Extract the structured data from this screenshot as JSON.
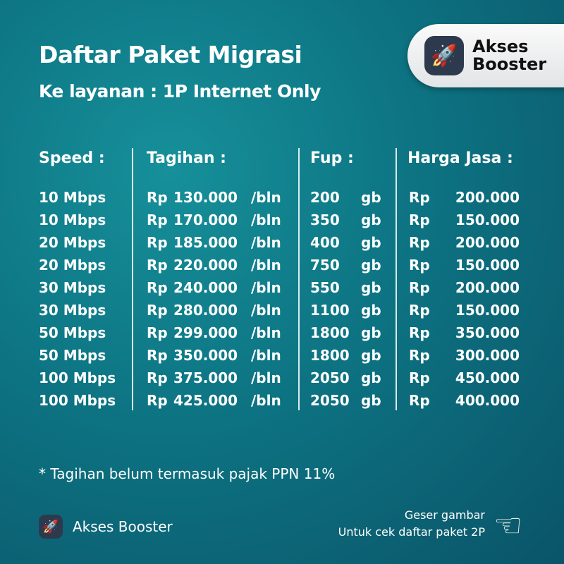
{
  "title": "Daftar Paket Migrasi",
  "subtitle": "Ke layanan : 1P Internet Only",
  "brand": {
    "name_line1": "Akses",
    "name_line2": "Booster",
    "name": "Akses Booster",
    "icon": "rocket-icon"
  },
  "table": {
    "headers": [
      "Speed :",
      "Tagihan :",
      "Fup :",
      "Harga Jasa :"
    ],
    "rows": [
      {
        "speed": "10 Mbps",
        "currency": "Rp",
        "bill": "130.000",
        "period": "/bln",
        "fup": "200",
        "unit": "gb",
        "fee_currency": "Rp",
        "fee": "200.000"
      },
      {
        "speed": "10 Mbps",
        "currency": "Rp",
        "bill": "170.000",
        "period": "/bln",
        "fup": "350",
        "unit": "gb",
        "fee_currency": "Rp",
        "fee": "150.000"
      },
      {
        "speed": "20 Mbps",
        "currency": "Rp",
        "bill": "185.000",
        "period": "/bln",
        "fup": "400",
        "unit": "gb",
        "fee_currency": "Rp",
        "fee": "200.000"
      },
      {
        "speed": "20 Mbps",
        "currency": "Rp",
        "bill": "220.000",
        "period": "/bln",
        "fup": "750",
        "unit": "gb",
        "fee_currency": "Rp",
        "fee": "150.000"
      },
      {
        "speed": "30 Mbps",
        "currency": "Rp",
        "bill": "240.000",
        "period": "/bln",
        "fup": "550",
        "unit": "gb",
        "fee_currency": "Rp",
        "fee": "200.000"
      },
      {
        "speed": "30 Mbps",
        "currency": "Rp",
        "bill": "280.000",
        "period": "/bln",
        "fup": "1100",
        "unit": "gb",
        "fee_currency": "Rp",
        "fee": "150.000"
      },
      {
        "speed": "50 Mbps",
        "currency": "Rp",
        "bill": "299.000",
        "period": "/bln",
        "fup": "1800",
        "unit": "gb",
        "fee_currency": "Rp",
        "fee": "350.000"
      },
      {
        "speed": "50 Mbps",
        "currency": "Rp",
        "bill": "350.000",
        "period": "/bln",
        "fup": "1800",
        "unit": "gb",
        "fee_currency": "Rp",
        "fee": "300.000"
      },
      {
        "speed": "100 Mbps",
        "currency": "Rp",
        "bill": "375.000",
        "period": "/bln",
        "fup": "2050",
        "unit": "gb",
        "fee_currency": "Rp",
        "fee": "450.000"
      },
      {
        "speed": "100 Mbps",
        "currency": "Rp",
        "bill": "425.000",
        "period": "/bln",
        "fup": "2050",
        "unit": "gb",
        "fee_currency": "Rp",
        "fee": "400.000"
      }
    ]
  },
  "note": "* Tagihan belum termasuk pajak PPN 11%",
  "swipe": {
    "line1": "Geser gambar",
    "line2": "Untuk cek daftar paket 2P",
    "icon": "swipe-hand-icon"
  }
}
